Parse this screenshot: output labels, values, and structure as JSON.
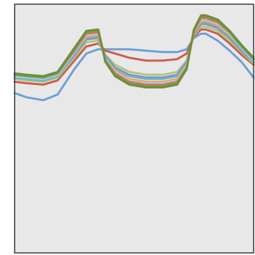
{
  "chart_data": {
    "type": "line",
    "title": "",
    "xlabel": "",
    "ylabel": "",
    "xlim": [
      0,
      100
    ],
    "ylim": [
      0,
      100
    ],
    "grid": false,
    "legend": "none",
    "background": "#e8e8e8",
    "frame_color": "#333333",
    "x": [
      0,
      5,
      12,
      18,
      25,
      30,
      35,
      38,
      42,
      48,
      55,
      62,
      68,
      72,
      75,
      78,
      80,
      85,
      90,
      95,
      100
    ],
    "series": [
      {
        "color": "#6f9ed6",
        "values": [
          45,
          42,
          40,
          44,
          62,
          73,
          76,
          76,
          76,
          76,
          75,
          74,
          74,
          76,
          84,
          87,
          87,
          82,
          75,
          67,
          56
        ]
      },
      {
        "color": "#d05b4a",
        "values": [
          53,
          52,
          51,
          54,
          68,
          78,
          80,
          75,
          73,
          70,
          68,
          68,
          69,
          73,
          85,
          90,
          90,
          87,
          80,
          72,
          65
        ]
      },
      {
        "color": "#a9c97a",
        "values": [
          55,
          54,
          53,
          56,
          70,
          81,
          82,
          72,
          65,
          60,
          58,
          58,
          60,
          68,
          86,
          92,
          92,
          89,
          82,
          74,
          66
        ]
      },
      {
        "color": "#9b7fbe",
        "values": [
          56,
          55,
          54,
          57,
          72,
          83,
          84,
          71,
          63,
          58,
          56,
          56,
          58,
          67,
          87,
          94,
          94,
          91,
          84,
          75,
          67
        ]
      },
      {
        "color": "#5bbad5",
        "values": [
          56,
          55,
          54,
          57,
          73,
          84,
          85,
          70,
          62,
          57,
          55,
          55,
          57,
          66,
          88,
          95,
          95,
          92,
          85,
          76,
          67
        ]
      },
      {
        "color": "#f5a04a",
        "values": [
          57,
          56,
          55,
          58,
          74,
          85,
          86,
          69,
          61,
          55,
          53,
          53,
          55,
          65,
          88,
          96,
          96,
          93,
          86,
          77,
          68
        ]
      },
      {
        "color": "#b0c8e8",
        "values": [
          57,
          56,
          55,
          58,
          74,
          86,
          87,
          69,
          60,
          54,
          52,
          52,
          54,
          64,
          89,
          97,
          97,
          94,
          87,
          77,
          68
        ]
      },
      {
        "color": "#e07060",
        "values": [
          58,
          57,
          56,
          59,
          75,
          87,
          88,
          68,
          59,
          53,
          51,
          51,
          53,
          63,
          89,
          98,
          98,
          95,
          88,
          78,
          69
        ]
      },
      {
        "color": "#7a9a48",
        "values": [
          58,
          57,
          56,
          59,
          76,
          88,
          89,
          68,
          58,
          52,
          50,
          50,
          52,
          63,
          90,
          99,
          99,
          96,
          88,
          78,
          69
        ]
      },
      {
        "color": "#6b8f3e",
        "values": [
          59,
          58,
          57,
          60,
          77,
          89,
          90,
          67,
          57,
          51,
          49,
          49,
          51,
          62,
          90,
          100,
          100,
          97,
          89,
          79,
          70
        ]
      }
    ]
  }
}
